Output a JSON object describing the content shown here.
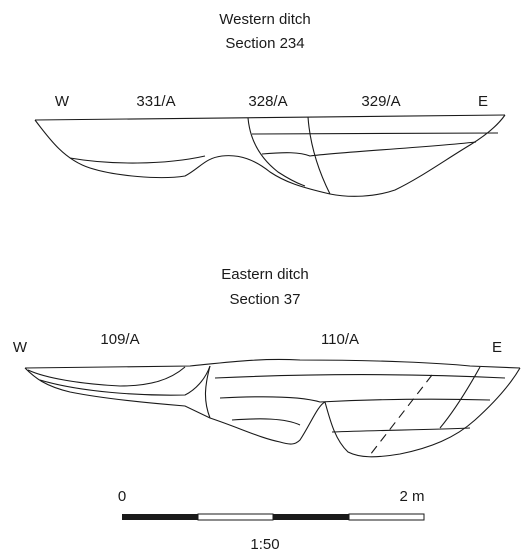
{
  "sections": [
    {
      "title": "Western ditch",
      "subtitle": "Section 234",
      "west_label": "W",
      "east_label": "E",
      "contexts": [
        "331/A",
        "328/A",
        "329/A"
      ]
    },
    {
      "title": "Eastern ditch",
      "subtitle": "Section 37",
      "west_label": "W",
      "east_label": "E",
      "contexts": [
        "109/A",
        "110/A"
      ]
    }
  ],
  "scale": {
    "start_label": "0",
    "end_label": "2 m",
    "ratio": "1:50"
  }
}
